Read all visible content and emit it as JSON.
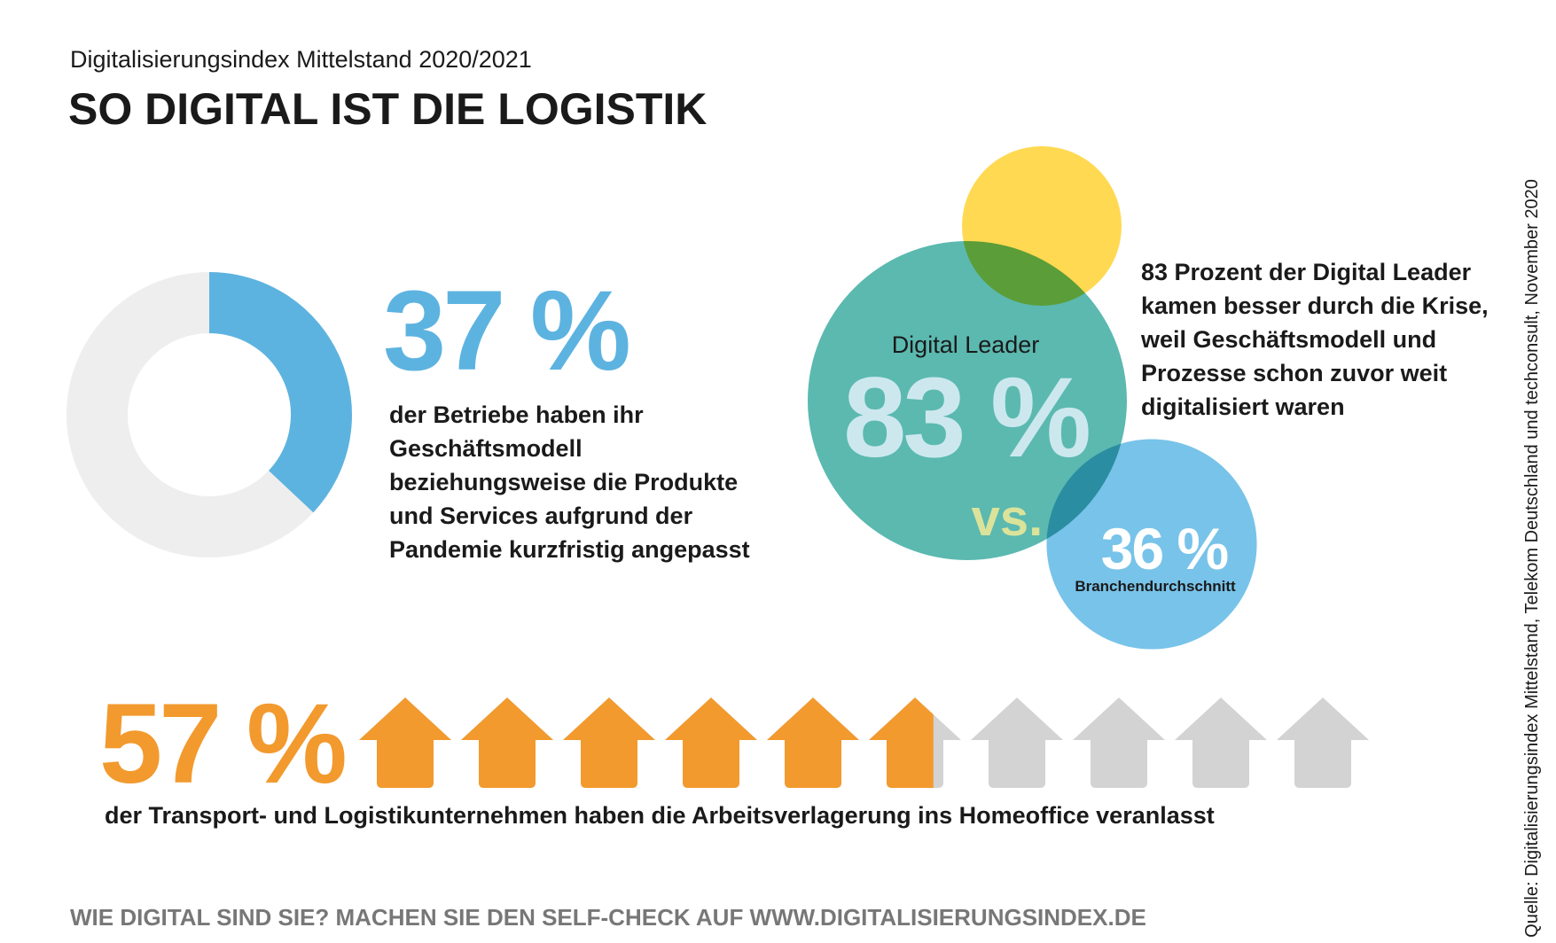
{
  "header": {
    "subtitle": "Digitalisierungsindex Mittelstand 2020/2021",
    "title": "SO DIGITAL IST DIE LOGISTIK"
  },
  "chart_data": [
    {
      "type": "donut",
      "values": [
        37
      ],
      "value_labels": [
        "37 %"
      ],
      "color": "#5db3e0",
      "track_color": "#efeeee",
      "annotation_lines": [
        "der Betriebe haben ihr",
        "Geschäftsmodell",
        "beziehungsweise die Produkte",
        "und Services aufgrund der",
        "Pandemie kurzfristig angepasst"
      ]
    },
    {
      "type": "bubble",
      "categories": [
        "Digital Leader",
        "Branchendurchschnitt"
      ],
      "values": [
        83,
        36
      ],
      "value_labels": [
        "83 %",
        "36 %"
      ],
      "colors": [
        "#5bb9b0",
        "#78c3e9"
      ],
      "decor_color": "#ffd951",
      "annotation": "vs.",
      "annotation_lines": [
        "83 Prozent der Digital Leader",
        "kamen besser durch die Krise,",
        "weil Geschäftsmodell und",
        "Prozesse schon zuvor weit",
        "digitalisiert waren"
      ]
    },
    {
      "type": "pictogram",
      "values": [
        57
      ],
      "value_labels": [
        "57 %"
      ],
      "icon_count": 10,
      "color": "#f29a2e",
      "empty_color": "#d3d3d3",
      "annotation": "der Transport- und Logistikunternehmen haben die Arbeitsverlagerung ins Homeoffice veranlasst"
    }
  ],
  "footer": "WIE DIGITAL SIND SIE? MACHEN SIE DEN SELF-CHECK AUF WWW.DIGITALISIERUNGSINDEX.DE",
  "source": "Quelle: Digitalisierungsindex Mittelstand, Telekom Deutschland und techconsult, November 2020"
}
